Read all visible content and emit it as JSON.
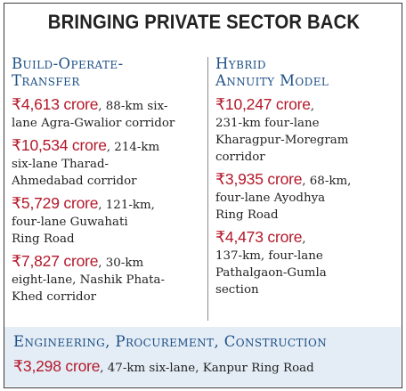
{
  "title": "BRINGING PRIVATE SECTOR BACK",
  "bot": {
    "heading_line1": "Build-Operate-",
    "heading_line2": "Transfer",
    "items": [
      {
        "amount": "₹4,613 crore",
        "desc_1": ", 88-km six-",
        "desc_2": "lane Agra-Gwalior corridor"
      },
      {
        "amount": "₹10,534 crore",
        "desc_1": ", 214-km",
        "desc_2": "six-lane Tharad-",
        "desc_3": "Ahmedabad corridor"
      },
      {
        "amount": "₹5,729 crore",
        "desc_1": ", 121-km,",
        "desc_2": "four-lane Guwahati",
        "desc_3": "Ring Road"
      },
      {
        "amount": "₹7,827 crore",
        "desc_1": ", 30-km",
        "desc_2": "eight-lane, Nashik Phata-",
        "desc_3": "Khed corridor"
      }
    ]
  },
  "ham": {
    "heading_line1": "Hybrid",
    "heading_line2": "Annuity Model",
    "items": [
      {
        "amount": "₹10,247 crore",
        "desc_1": ",",
        "desc_2": "231-km four-lane",
        "desc_3": "Kharagpur-Moregram",
        "desc_4": "corridor"
      },
      {
        "amount": "₹3,935 crore",
        "desc_1": ", 68-km,",
        "desc_2": "four-lane Ayodhya",
        "desc_3": "Ring Road"
      },
      {
        "amount": "₹4,473 crore",
        "desc_1": ",",
        "desc_2": "137-km, four-lane",
        "desc_3": "Pathalgaon-Gumla",
        "desc_4": "section"
      }
    ]
  },
  "epc": {
    "heading": "Engineering, Procurement, Construction",
    "amount": "₹3,298 crore",
    "desc": ", 47-km six-lane, Kanpur Ring Road"
  },
  "colors": {
    "accent_blue": "#1d4f86",
    "amount_red": "#b3182a",
    "band_bg": "#e4edf6"
  }
}
